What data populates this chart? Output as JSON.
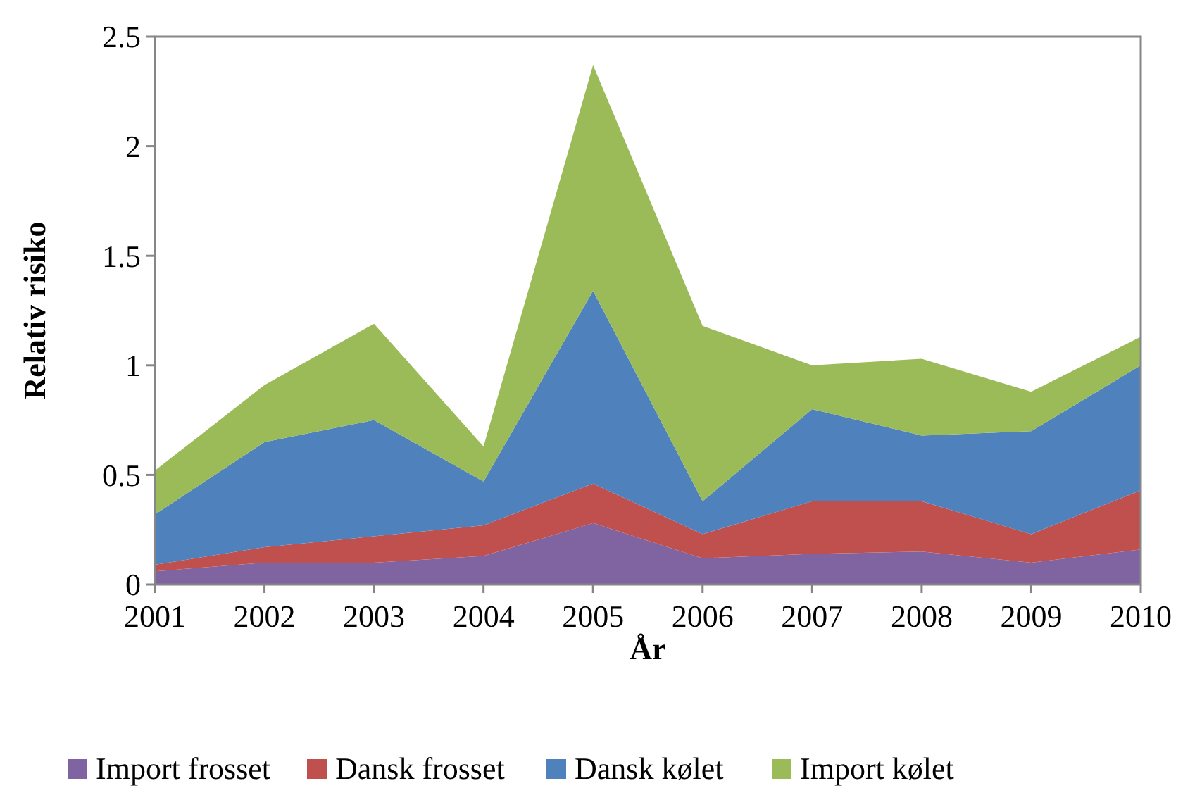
{
  "chart_data": {
    "type": "area",
    "stacked": true,
    "xlabel": "År",
    "ylabel": "Relativ risiko",
    "x": [
      2001,
      2002,
      2003,
      2004,
      2005,
      2006,
      2007,
      2008,
      2009,
      2010
    ],
    "xlim": [
      2001,
      2010
    ],
    "xticks": [
      2001,
      2002,
      2003,
      2004,
      2005,
      2006,
      2007,
      2008,
      2009,
      2010
    ],
    "ylim": [
      0,
      2.5
    ],
    "yticks": [
      0,
      0.5,
      1,
      1.5,
      2,
      2.5
    ],
    "grid": false,
    "legend": "bottom",
    "series": [
      {
        "name": "Import frosset",
        "color": "#8064a2",
        "values": [
          0.06,
          0.1,
          0.1,
          0.13,
          0.28,
          0.12,
          0.14,
          0.15,
          0.1,
          0.16
        ]
      },
      {
        "name": "Dansk frosset",
        "color": "#c0504d",
        "values": [
          0.03,
          0.07,
          0.12,
          0.14,
          0.18,
          0.11,
          0.24,
          0.23,
          0.13,
          0.27
        ]
      },
      {
        "name": "Dansk kølet",
        "color": "#4f81bd",
        "values": [
          0.23,
          0.48,
          0.53,
          0.2,
          0.88,
          0.15,
          0.42,
          0.3,
          0.47,
          0.57
        ]
      },
      {
        "name": "Import kølet",
        "color": "#9bbb59",
        "values": [
          0.2,
          0.26,
          0.44,
          0.16,
          1.03,
          0.8,
          0.2,
          0.35,
          0.18,
          0.13
        ]
      }
    ]
  }
}
